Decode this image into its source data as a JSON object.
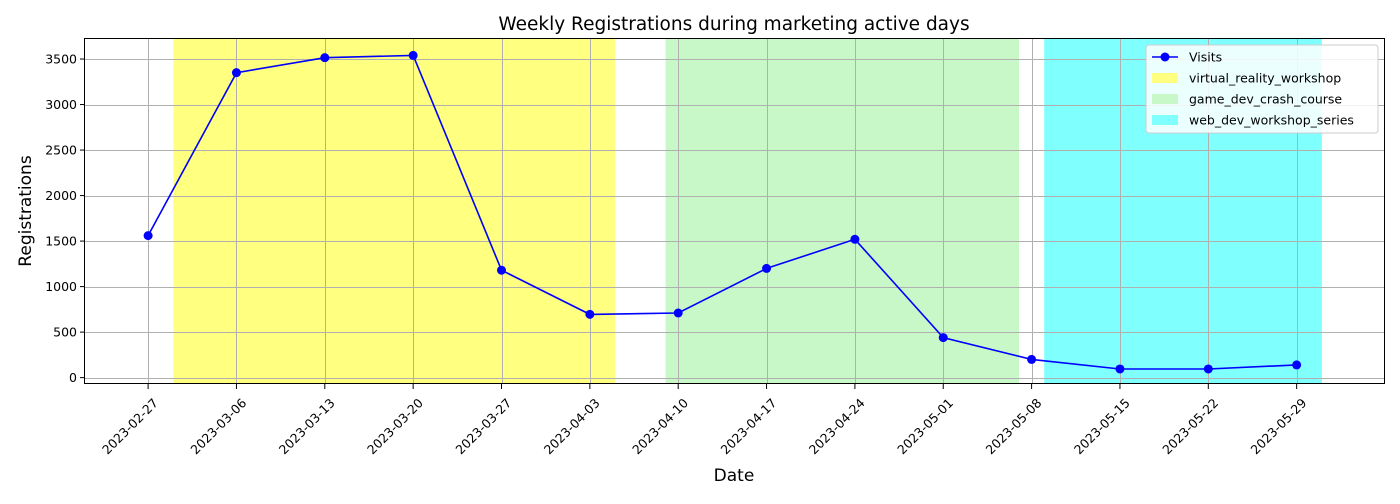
{
  "chart_data": {
    "type": "line",
    "title": "Weekly Registrations during marketing active days",
    "xlabel": "Date",
    "ylabel": "Registrations",
    "x": [
      "2023-02-27",
      "2023-03-06",
      "2023-03-13",
      "2023-03-20",
      "2023-03-27",
      "2023-04-03",
      "2023-04-10",
      "2023-04-17",
      "2023-04-24",
      "2023-05-01",
      "2023-05-08",
      "2023-05-15",
      "2023-05-22",
      "2023-05-29"
    ],
    "xticks": [
      "2023-02-27",
      "2023-03-06",
      "2023-03-13",
      "2023-03-20",
      "2023-03-27",
      "2023-04-03",
      "2023-04-10",
      "2023-04-17",
      "2023-04-24",
      "2023-05-01",
      "2023-05-08",
      "2023-05-15",
      "2023-05-22",
      "2023-05-29"
    ],
    "xlim": [
      "2023-02-22",
      "2023-06-05"
    ],
    "ylim": [
      -70,
      3720
    ],
    "yticks": [
      0,
      500,
      1000,
      1500,
      2000,
      2500,
      3000,
      3500
    ],
    "grid": true,
    "legend_position": "top-right",
    "series": [
      {
        "name": "Visits",
        "color": "#0000ff",
        "marker": "circle",
        "values": [
          1560,
          3350,
          3515,
          3540,
          1180,
          695,
          710,
          1200,
          1520,
          440,
          200,
          95,
          95,
          140
        ]
      }
    ],
    "spans": [
      {
        "name": "virtual_reality_workshop",
        "start": "2023-03-01",
        "end": "2023-04-05",
        "color": "#ffff80"
      },
      {
        "name": "game_dev_crash_course",
        "start": "2023-04-09",
        "end": "2023-05-07",
        "color": "#c8f8c8"
      },
      {
        "name": "web_dev_workshop_series",
        "start": "2023-05-09",
        "end": "2023-05-31",
        "color": "#80ffff"
      }
    ]
  }
}
